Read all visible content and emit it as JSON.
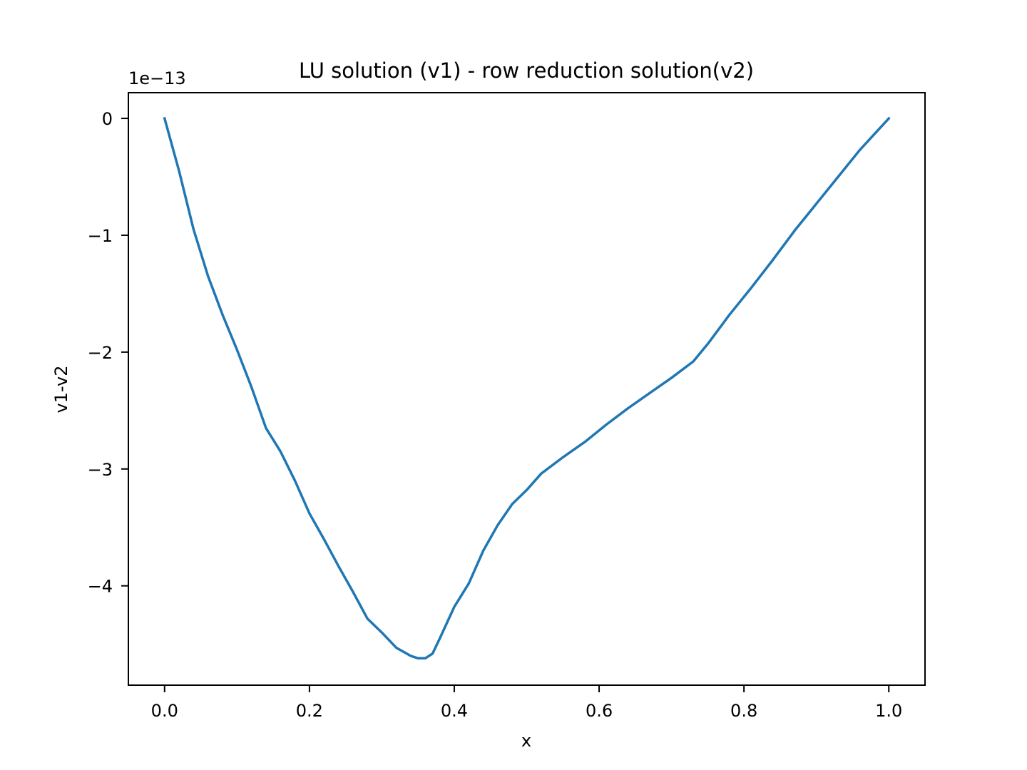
{
  "chart_data": {
    "type": "line",
    "title": "LU solution (v1) - row reduction solution(v2)",
    "xlabel": "x",
    "ylabel": "v1-v2",
    "y_offset_text": "1e−13",
    "y_scale_exponent": -13,
    "xlim": [
      -0.05,
      1.05
    ],
    "ylim": [
      -4.85,
      0.22
    ],
    "x_ticks": [
      0.0,
      0.2,
      0.4,
      0.6,
      0.8,
      1.0
    ],
    "x_tick_labels": [
      "0.0",
      "0.2",
      "0.4",
      "0.6",
      "0.8",
      "1.0"
    ],
    "y_ticks": [
      0,
      -1,
      -2,
      -3,
      -4
    ],
    "y_tick_labels": [
      "0",
      "−1",
      "−2",
      "−3",
      "−4"
    ],
    "grid": false,
    "line_color": "#1f77b4",
    "series": [
      {
        "x": [
          0.0,
          0.02,
          0.04,
          0.06,
          0.08,
          0.1,
          0.12,
          0.14,
          0.16,
          0.18,
          0.2,
          0.22,
          0.24,
          0.26,
          0.28,
          0.3,
          0.32,
          0.34,
          0.35,
          0.36,
          0.37,
          0.38,
          0.4,
          0.42,
          0.44,
          0.46,
          0.48,
          0.5,
          0.52,
          0.55,
          0.58,
          0.61,
          0.64,
          0.67,
          0.7,
          0.73,
          0.75,
          0.78,
          0.81,
          0.84,
          0.87,
          0.9,
          0.93,
          0.96,
          1.0
        ],
        "y": [
          0.0,
          -0.45,
          -0.95,
          -1.35,
          -1.68,
          -1.98,
          -2.3,
          -2.65,
          -2.85,
          -3.1,
          -3.38,
          -3.6,
          -3.83,
          -4.05,
          -4.28,
          -4.4,
          -4.53,
          -4.6,
          -4.62,
          -4.62,
          -4.58,
          -4.45,
          -4.18,
          -3.98,
          -3.7,
          -3.48,
          -3.3,
          -3.18,
          -3.04,
          -2.9,
          -2.77,
          -2.62,
          -2.48,
          -2.35,
          -2.22,
          -2.08,
          -1.93,
          -1.68,
          -1.45,
          -1.21,
          -0.96,
          -0.73,
          -0.5,
          -0.27,
          0.0
        ]
      }
    ]
  }
}
